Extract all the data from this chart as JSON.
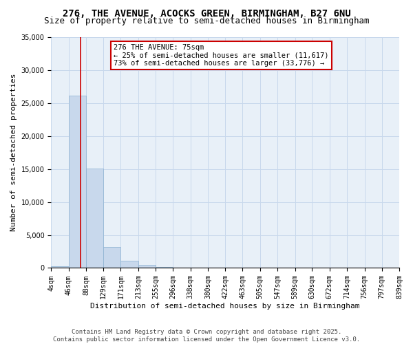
{
  "title_line1": "276, THE AVENUE, ACOCKS GREEN, BIRMINGHAM, B27 6NU",
  "title_line2": "Size of property relative to semi-detached houses in Birmingham",
  "xlabel": "Distribution of semi-detached houses by size in Birmingham",
  "ylabel": "Number of semi-detached properties",
  "bin_edges": [
    4,
    46,
    88,
    129,
    171,
    213,
    255,
    296,
    338,
    380,
    422,
    463,
    505,
    547,
    589,
    630,
    672,
    714,
    756,
    797,
    839
  ],
  "bar_heights": [
    300,
    26100,
    15100,
    3200,
    1050,
    420,
    180,
    60,
    15,
    5,
    3,
    2,
    1,
    1,
    0,
    0,
    0,
    0,
    0,
    0
  ],
  "bar_color": "#c8d8ec",
  "bar_edge_color": "#8ab0d0",
  "grid_color": "#c8d8ec",
  "bg_color": "#e8f0f8",
  "property_size": 75,
  "annotation_text": "276 THE AVENUE: 75sqm\n← 25% of semi-detached houses are smaller (11,617)\n73% of semi-detached houses are larger (33,776) →",
  "annotation_box_color": "#ffffff",
  "annotation_border_color": "#cc0000",
  "vline_color": "#cc0000",
  "ylim": [
    0,
    35000
  ],
  "yticks": [
    0,
    5000,
    10000,
    15000,
    20000,
    25000,
    30000,
    35000
  ],
  "footer_line1": "Contains HM Land Registry data © Crown copyright and database right 2025.",
  "footer_line2": "Contains public sector information licensed under the Open Government Licence v3.0.",
  "title_fontsize": 10,
  "subtitle_fontsize": 9,
  "label_fontsize": 8,
  "tick_fontsize": 7,
  "annotation_fontsize": 7.5,
  "footer_fontsize": 6.5
}
